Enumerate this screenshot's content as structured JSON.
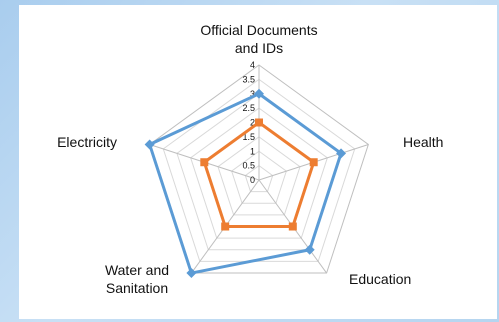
{
  "chart_data": {
    "type": "radar",
    "axes": [
      [
        "Official Documents",
        "and IDs"
      ],
      [
        "Health"
      ],
      [
        "Education"
      ],
      [
        "Water and",
        "Sanitation"
      ],
      [
        "Electricity"
      ]
    ],
    "rlim": [
      0,
      4
    ],
    "ticks": [
      "0",
      "0.5",
      "1",
      "1.5",
      "2",
      "2.5",
      "3",
      "3.5",
      "4"
    ],
    "grid": true,
    "legend": "none",
    "series": [
      {
        "color": "#5b9bd5",
        "values": [
          3,
          3,
          3,
          4,
          4
        ]
      },
      {
        "color": "#ed7d31",
        "values": [
          2,
          2,
          2,
          2,
          2
        ]
      }
    ]
  }
}
